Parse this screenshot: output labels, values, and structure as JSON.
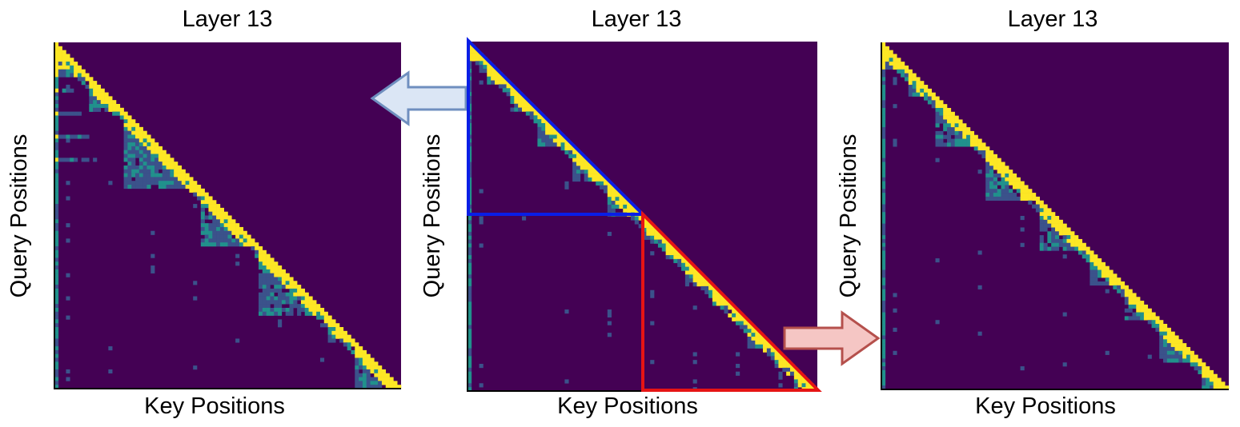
{
  "colors": {
    "background_cell": "#440154",
    "low_attention": "#3b528b",
    "mid_attention": "#21918c",
    "high_attention": "#fde725",
    "blue_box": "#0a1ee6",
    "red_box": "#e61414",
    "left_arrow_fill": "#dbe6f5",
    "left_arrow_stroke": "#6f8fbf",
    "right_arrow_fill": "#f5c6c4",
    "right_arrow_stroke": "#b5504c"
  },
  "icons": {
    "left_arrow": "arrow-left-icon",
    "right_arrow": "arrow-right-icon"
  },
  "chart_data": [
    {
      "type": "heatmap",
      "title": "Layer 13",
      "xlabel": "Key Positions",
      "ylabel": "Query Positions",
      "mask": "lower-triangular",
      "highlight": "none"
    },
    {
      "type": "heatmap",
      "title": "Layer 13",
      "xlabel": "Key Positions",
      "ylabel": "Query Positions",
      "mask": "lower-triangular",
      "highlight": "blue triangle top-left segment, red triangle bottom-right segment"
    },
    {
      "type": "heatmap",
      "title": "Layer 13",
      "xlabel": "Key Positions",
      "ylabel": "Query Positions",
      "mask": "lower-triangular",
      "highlight": "none"
    }
  ]
}
